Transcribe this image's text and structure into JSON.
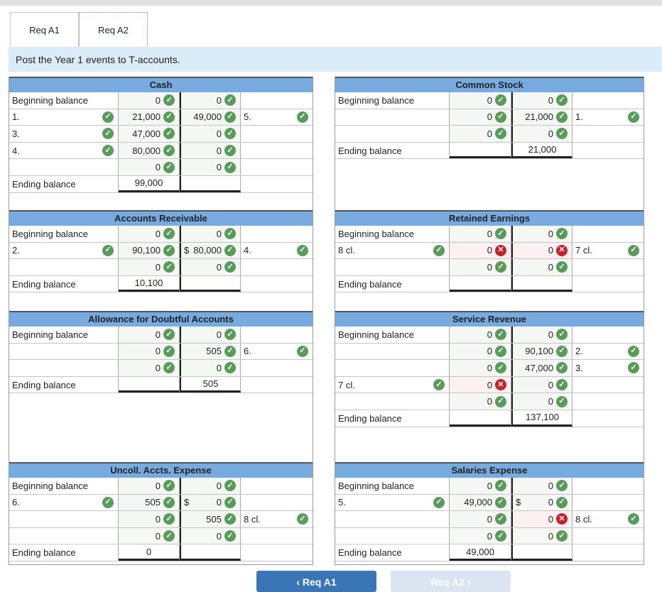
{
  "tabs": [
    {
      "label": "Req A1",
      "active": false
    },
    {
      "label": "Req A2",
      "active": true
    }
  ],
  "instruction": "Post the Year 1 events to T-accounts.",
  "colors": {
    "header": "#77abe0",
    "check": "#5a9a5a",
    "error": "#c8202a",
    "instruction_bg": "#dcebf8"
  },
  "accounts_left": [
    {
      "title": "Cash",
      "rows": [
        {
          "l": "Beginning balance",
          "d": "0",
          "ds": "ok",
          "c": "0",
          "cs": "ok"
        },
        {
          "l": "1.",
          "lc": "ok",
          "d": "21,000",
          "ds": "ok",
          "c": "49,000",
          "cs": "ok",
          "r": "5.",
          "rc": "ok"
        },
        {
          "l": "3.",
          "lc": "ok",
          "d": "47,000",
          "ds": "ok",
          "c": "0",
          "cs": "ok"
        },
        {
          "l": "4.",
          "lc": "ok",
          "d": "80,000",
          "ds": "ok",
          "c": "0",
          "cs": "ok"
        },
        {
          "l": "",
          "d": "0",
          "ds": "ok",
          "c": "0",
          "cs": "ok"
        },
        {
          "l": "Ending balance",
          "d": "99,000",
          "c": "",
          "end": true
        }
      ]
    },
    {
      "title": "Accounts Receivable",
      "rows": [
        {
          "l": "Beginning balance",
          "d": "0",
          "ds": "ok",
          "c": "0",
          "cs": "ok"
        },
        {
          "l": "2.",
          "lc": "ok",
          "d": "90,100",
          "ds": "ok",
          "cp": "$",
          "c": "80,000",
          "cs": "ok",
          "r": "4.",
          "rc": "ok"
        },
        {
          "l": "",
          "d": "0",
          "ds": "ok",
          "c": "0",
          "cs": "ok"
        },
        {
          "l": "Ending balance",
          "d": "10,100",
          "c": "",
          "end": true
        }
      ]
    },
    {
      "title": "Allowance for Doubtful Accounts",
      "rows": [
        {
          "l": "Beginning balance",
          "d": "0",
          "ds": "ok",
          "c": "0",
          "cs": "ok"
        },
        {
          "l": "",
          "d": "0",
          "ds": "ok",
          "c": "505",
          "cs": "ok",
          "r": "6.",
          "rc": "ok"
        },
        {
          "l": "",
          "d": "0",
          "ds": "ok",
          "c": "0",
          "cs": "ok"
        },
        {
          "l": "Ending balance",
          "d": "",
          "c": "505",
          "end": true
        }
      ]
    },
    {
      "title": "Uncoll. Accts. Expense",
      "rows": [
        {
          "l": "Beginning balance",
          "d": "0",
          "ds": "ok",
          "c": "0",
          "cs": "ok"
        },
        {
          "l": "6.",
          "lc": "ok",
          "d": "505",
          "ds": "ok",
          "cp": "$",
          "c": "0",
          "cs": "ok"
        },
        {
          "l": "",
          "d": "0",
          "ds": "ok",
          "c": "505",
          "cs": "ok",
          "r": "8 cl.",
          "rc": "ok"
        },
        {
          "l": "",
          "d": "0",
          "ds": "ok",
          "c": "0",
          "cs": "ok"
        },
        {
          "l": "Ending balance",
          "d": "0",
          "c": "",
          "end": true
        }
      ]
    }
  ],
  "accounts_right": [
    {
      "title": "Common Stock",
      "rows": [
        {
          "l": "Beginning balance",
          "d": "0",
          "ds": "ok",
          "c": "0",
          "cs": "ok"
        },
        {
          "l": "",
          "d": "0",
          "ds": "ok",
          "c": "21,000",
          "cs": "ok",
          "r": "1.",
          "rc": "ok"
        },
        {
          "l": "",
          "d": "0",
          "ds": "ok",
          "c": "0",
          "cs": "ok"
        },
        {
          "l": "Ending balance",
          "d": "",
          "c": "21,000",
          "end": true
        }
      ]
    },
    {
      "title": "Retained Earnings",
      "rows": [
        {
          "l": "Beginning balance",
          "d": "0",
          "ds": "ok",
          "c": "0",
          "cs": "ok"
        },
        {
          "l": "8 cl.",
          "lc": "ok",
          "d": "0",
          "ds": "err",
          "c": "0",
          "cs": "err",
          "r": "7 cl.",
          "rc": "ok"
        },
        {
          "l": "",
          "d": "0",
          "ds": "ok",
          "c": "0",
          "cs": "ok"
        },
        {
          "l": "Ending balance",
          "d": "",
          "c": "",
          "end": true
        }
      ]
    },
    {
      "title": "Service Revenue",
      "rows": [
        {
          "l": "Beginning balance",
          "d": "0",
          "ds": "ok",
          "c": "0",
          "cs": "ok"
        },
        {
          "l": "",
          "d": "0",
          "ds": "ok",
          "c": "90,100",
          "cs": "ok",
          "r": "2.",
          "rc": "ok"
        },
        {
          "l": "",
          "d": "0",
          "ds": "ok",
          "c": "47,000",
          "cs": "ok",
          "r": "3.",
          "rc": "ok"
        },
        {
          "l": "7 cl.",
          "lc": "ok",
          "d": "0",
          "ds": "err",
          "c": "0",
          "cs": "ok"
        },
        {
          "l": "",
          "d": "0",
          "ds": "ok",
          "c": "0",
          "cs": "ok"
        },
        {
          "l": "Ending balance",
          "d": "",
          "c": "137,100",
          "end": true
        }
      ]
    },
    {
      "title": "Salaries Expense",
      "rows": [
        {
          "l": "Beginning balance",
          "d": "0",
          "ds": "ok",
          "c": "0",
          "cs": "ok"
        },
        {
          "l": "5.",
          "lc": "ok",
          "d": "49,000",
          "ds": "ok",
          "cp": "$",
          "c": "0",
          "cs": "ok"
        },
        {
          "l": "",
          "d": "0",
          "ds": "ok",
          "c": "0",
          "cs": "err",
          "r": "8 cl.",
          "rc": "ok"
        },
        {
          "l": "",
          "d": "0",
          "ds": "ok",
          "c": "0",
          "cs": "ok"
        },
        {
          "l": "Ending balance",
          "d": "49,000",
          "c": "",
          "end": true
        }
      ]
    }
  ],
  "nav": {
    "prev": "‹  Req A1",
    "next": "Req A2  ›"
  }
}
